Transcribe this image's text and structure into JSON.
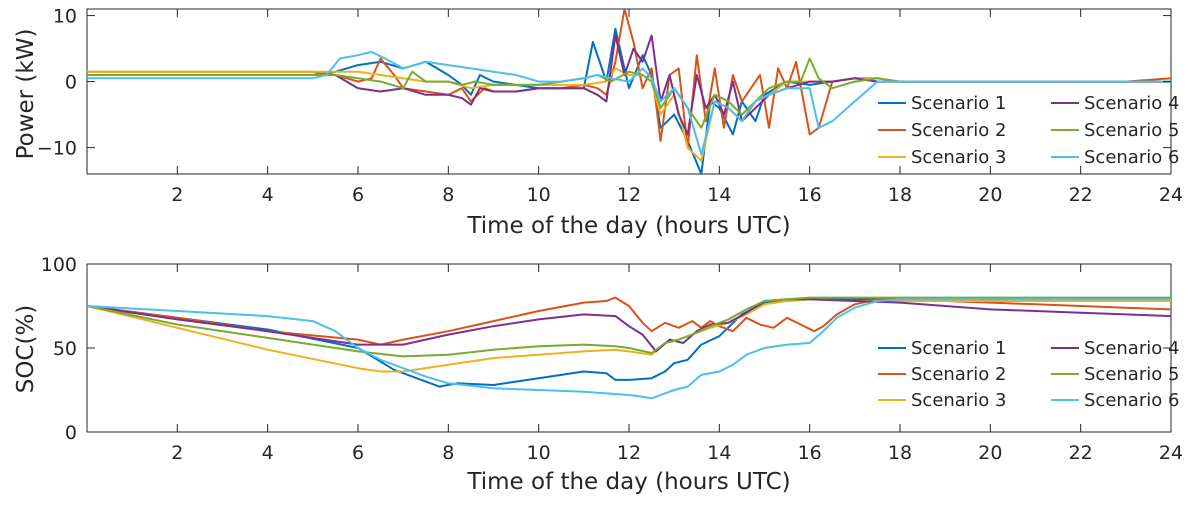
{
  "chart_data": [
    {
      "type": "line",
      "xlabel": "Time of the day (hours UTC)",
      "ylabel": "Power (kW)",
      "xlim": [
        0,
        24
      ],
      "ylim": [
        -14,
        11
      ],
      "xticks": [
        2,
        4,
        6,
        8,
        10,
        12,
        14,
        16,
        18,
        20,
        22,
        24
      ],
      "yticks": [
        -10,
        0,
        10
      ],
      "grid": false,
      "legend_position": "bottom-right",
      "legend_columns": 2,
      "series": [
        {
          "name": "Scenario 1",
          "color": "#0072BD",
          "x": [
            0,
            2,
            4,
            5,
            5.5,
            6,
            6.5,
            7,
            7.5,
            8,
            8.3,
            8.5,
            8.7,
            9,
            9.5,
            10,
            10.5,
            11,
            11.2,
            11.5,
            11.7,
            12,
            12.3,
            12.5,
            12.7,
            13,
            13.3,
            13.6,
            13.8,
            14,
            14.3,
            14.5,
            14.8,
            15,
            15.5,
            16,
            16.5,
            17,
            17.5,
            18,
            19,
            20,
            21,
            22,
            23,
            24
          ],
          "y": [
            1,
            1,
            1,
            1,
            1.5,
            2.5,
            3,
            2,
            3,
            1,
            -0.5,
            -2,
            1,
            0,
            -0.5,
            -1,
            -1,
            -1,
            6,
            0,
            8,
            -1,
            4,
            1,
            -7,
            -5,
            -9,
            -14,
            -3,
            -4,
            -8,
            -3,
            -6,
            -2,
            0,
            -0.5,
            0,
            0.5,
            0,
            0,
            0,
            0,
            0,
            0,
            0,
            0
          ]
        },
        {
          "name": "Scenario 2",
          "color": "#D95319",
          "x": [
            0,
            2,
            4,
            5,
            5.5,
            6,
            6.3,
            6.5,
            6.8,
            7,
            7.5,
            8,
            8.3,
            8.5,
            8.8,
            9,
            9.5,
            10,
            10.5,
            11,
            11.3,
            11.5,
            11.7,
            11.9,
            12.1,
            12.3,
            12.5,
            12.7,
            12.9,
            13.1,
            13.3,
            13.5,
            13.7,
            13.9,
            14.1,
            14.3,
            14.5,
            14.7,
            14.9,
            15.1,
            15.3,
            15.5,
            15.7,
            16,
            16.2,
            16.5,
            17,
            17.5,
            18,
            19,
            20,
            21,
            22,
            23,
            24
          ],
          "y": [
            1.5,
            1.5,
            1.5,
            1.5,
            1,
            0,
            0.5,
            3.5,
            1,
            -1,
            -1.5,
            -2,
            -1,
            -3,
            -1,
            -1.5,
            -1.5,
            -1,
            -1,
            -0.5,
            -1,
            -2,
            3,
            11,
            6,
            -1,
            2,
            -9,
            1,
            2,
            -10,
            4,
            -6,
            2,
            -7,
            1,
            -3,
            -1,
            1,
            -7,
            2,
            -1,
            3,
            -8,
            -7,
            0,
            0.5,
            0.5,
            0,
            0,
            0,
            0,
            0,
            0,
            0.5
          ]
        },
        {
          "name": "Scenario 3",
          "color": "#EDB120",
          "x": [
            0,
            2,
            4,
            5,
            5.5,
            6,
            6.5,
            7,
            7.5,
            8,
            8.5,
            9,
            9.5,
            10,
            10.5,
            11,
            11.5,
            11.7,
            12,
            12.3,
            12.5,
            12.7,
            13,
            13.3,
            13.6,
            13.9,
            14.2,
            14.5,
            14.8,
            15.1,
            15.5,
            16,
            16.5,
            17,
            17.5,
            18,
            19,
            20,
            21,
            22,
            23,
            24
          ],
          "y": [
            1.5,
            1.5,
            1.5,
            1.5,
            1.5,
            1.5,
            1,
            0.5,
            0,
            0,
            -1,
            -0.5,
            -0.5,
            -0.5,
            -0.5,
            -0.5,
            0,
            2,
            1,
            1,
            0,
            -5,
            -2,
            -10,
            -12,
            -3,
            -4,
            -6,
            -3,
            -2,
            0,
            0,
            0,
            0.5,
            0.5,
            0,
            0,
            0,
            0,
            0,
            0,
            0
          ]
        },
        {
          "name": "Scenario 4",
          "color": "#7E2F8E",
          "x": [
            0,
            2,
            4,
            5,
            5.5,
            6,
            6.5,
            7,
            7.5,
            8,
            8.3,
            8.5,
            8.7,
            9,
            9.5,
            10,
            10.5,
            11,
            11.3,
            11.5,
            11.7,
            11.9,
            12.1,
            12.3,
            12.5,
            12.7,
            12.9,
            13.1,
            13.3,
            13.5,
            13.7,
            13.9,
            14.1,
            14.3,
            14.5,
            14.8,
            15.1,
            15.5,
            16,
            16.5,
            17,
            17.5,
            18,
            19,
            20,
            21,
            22,
            23,
            24
          ],
          "y": [
            1,
            1,
            1,
            1,
            1,
            -1,
            -1.5,
            -1,
            -2,
            -2,
            -2.5,
            -3.5,
            -1,
            -1.5,
            -1.5,
            -1,
            -1,
            -1,
            -2,
            -3,
            7,
            1,
            5,
            3,
            7,
            -3,
            1,
            -5,
            -8,
            1,
            -4,
            -2,
            -5,
            0,
            -6,
            -4,
            -2,
            -1,
            0,
            0,
            0.5,
            0,
            0,
            0,
            0,
            0,
            0,
            0,
            0
          ]
        },
        {
          "name": "Scenario 5",
          "color": "#77AC30",
          "x": [
            0,
            2,
            4,
            5,
            5.5,
            6,
            6.5,
            7,
            7.2,
            7.5,
            8,
            8.3,
            8.6,
            9,
            9.5,
            10,
            10.5,
            11,
            11.3,
            11.6,
            12,
            12.3,
            12.5,
            12.7,
            13,
            13.3,
            13.6,
            13.9,
            14.2,
            14.5,
            14.8,
            15.1,
            15.5,
            15.8,
            16,
            16.2,
            16.5,
            17,
            17.5,
            18,
            19,
            20,
            21,
            22,
            23,
            24
          ],
          "y": [
            1,
            1,
            1,
            1,
            1,
            0.5,
            0,
            -1,
            1.5,
            0,
            0,
            -0.5,
            0,
            -0.5,
            -0.5,
            -0.5,
            0,
            0.5,
            1,
            0,
            1.5,
            1,
            0,
            -4,
            -1,
            -4,
            -7,
            -2,
            -3,
            -5,
            -3,
            -1,
            0,
            0,
            3.5,
            0.5,
            -1,
            0,
            0.5,
            0,
            0,
            0,
            0,
            0,
            0,
            0
          ]
        },
        {
          "name": "Scenario 6",
          "color": "#4DBEEE",
          "x": [
            0,
            2,
            4,
            5,
            5.3,
            5.6,
            6,
            6.3,
            6.6,
            7,
            7.5,
            8,
            8.5,
            9,
            9.5,
            10,
            10.5,
            11,
            11.3,
            11.6,
            12,
            12.3,
            12.5,
            12.7,
            13,
            13.3,
            13.6,
            13.9,
            14.2,
            14.5,
            14.8,
            15.1,
            15.5,
            16,
            16.2,
            16.5,
            17,
            17.5,
            18,
            19,
            20,
            21,
            22,
            23,
            24
          ],
          "y": [
            0.5,
            0.5,
            0.5,
            0.5,
            1,
            3.5,
            4,
            4.5,
            3.5,
            2,
            3,
            2.5,
            2,
            1.5,
            1,
            0,
            0,
            0.5,
            1,
            0.5,
            0,
            2,
            0.5,
            -3,
            -1,
            -4,
            -11,
            -3,
            -4,
            -6,
            -3,
            -2,
            -1,
            -1,
            -7,
            -6,
            -3,
            0,
            0,
            0,
            0,
            0,
            0,
            0,
            0
          ]
        }
      ]
    },
    {
      "type": "line",
      "xlabel": "Time of the day (hours UTC)",
      "ylabel": "SOC(%)",
      "xlim": [
        0,
        24
      ],
      "ylim": [
        0,
        100
      ],
      "xticks": [
        2,
        4,
        6,
        8,
        10,
        12,
        14,
        16,
        18,
        20,
        22,
        24
      ],
      "yticks": [
        0,
        50,
        100
      ],
      "grid": false,
      "legend_position": "bottom-right",
      "legend_columns": 2,
      "series": [
        {
          "name": "Scenario 1",
          "color": "#0072BD",
          "x": [
            0,
            2,
            4,
            6,
            6.8,
            7.5,
            7.8,
            8.2,
            9,
            10,
            10.5,
            11,
            11.5,
            11.7,
            12,
            12.5,
            12.8,
            13,
            13.3,
            13.6,
            14,
            14.5,
            15,
            15.5,
            16,
            16.5,
            17,
            18,
            19,
            20,
            21,
            22,
            23,
            24
          ],
          "y": [
            75,
            68,
            61,
            50,
            37,
            30,
            27,
            29,
            28,
            32,
            34,
            36,
            35,
            31,
            31,
            32,
            36,
            41,
            43,
            52,
            57,
            70,
            77,
            78,
            79,
            79,
            79,
            79,
            79,
            79,
            79,
            79,
            79,
            79
          ]
        },
        {
          "name": "Scenario 2",
          "color": "#D95319",
          "x": [
            0,
            2,
            4,
            6,
            6.5,
            7,
            8,
            9,
            10,
            11,
            11.5,
            11.7,
            12,
            12.3,
            12.5,
            12.8,
            13.1,
            13.4,
            13.6,
            13.8,
            14,
            14.3,
            14.6,
            14.9,
            15.2,
            15.5,
            15.8,
            16.1,
            16.3,
            16.6,
            17,
            17.5,
            18,
            19,
            20,
            21,
            22,
            23,
            24
          ],
          "y": [
            75,
            68,
            60,
            55,
            52,
            55,
            60,
            66,
            72,
            77,
            78,
            80,
            75,
            65,
            60,
            65,
            62,
            66,
            62,
            66,
            63,
            60,
            68,
            64,
            62,
            68,
            64,
            60,
            63,
            70,
            76,
            79,
            79,
            78,
            77,
            76,
            75,
            74,
            73
          ]
        },
        {
          "name": "Scenario 3",
          "color": "#EDB120",
          "x": [
            0,
            2,
            4,
            6,
            6.5,
            7,
            8,
            9,
            10,
            11,
            11.7,
            12,
            12.5,
            12.8,
            13.1,
            13.4,
            13.8,
            14.2,
            14.6,
            15,
            15.5,
            16,
            17,
            18,
            19,
            20,
            21,
            22,
            23,
            24
          ],
          "y": [
            75,
            62,
            49,
            38,
            36,
            36,
            40,
            44,
            46,
            48,
            49,
            48,
            46,
            53,
            55,
            58,
            62,
            65,
            70,
            76,
            78,
            79,
            78,
            78,
            78,
            78,
            78,
            78,
            78,
            78
          ]
        },
        {
          "name": "Scenario 4",
          "color": "#7E2F8E",
          "x": [
            0,
            2,
            4,
            6,
            7,
            8,
            9,
            10,
            11,
            11.7,
            12,
            12.3,
            12.6,
            12.9,
            13.2,
            13.5,
            13.8,
            14.2,
            14.6,
            15,
            15.5,
            16,
            17,
            18,
            19,
            20,
            21,
            22,
            23,
            24
          ],
          "y": [
            75,
            67,
            60,
            52,
            52,
            58,
            63,
            67,
            70,
            69,
            63,
            58,
            48,
            55,
            53,
            60,
            64,
            65,
            71,
            78,
            79,
            79,
            78,
            77,
            75,
            73,
            72,
            71,
            70,
            69
          ]
        },
        {
          "name": "Scenario 5",
          "color": "#77AC30",
          "x": [
            0,
            2,
            4,
            6,
            7,
            8,
            9,
            10,
            11,
            11.7,
            12,
            12.5,
            12.8,
            13.1,
            13.4,
            13.8,
            14.2,
            14.6,
            15,
            15.5,
            16,
            17,
            18,
            19,
            20,
            21,
            22,
            23,
            24
          ],
          "y": [
            75,
            64,
            56,
            48,
            45,
            46,
            49,
            51,
            52,
            51,
            50,
            47,
            53,
            55,
            58,
            63,
            67,
            73,
            78,
            79,
            80,
            80,
            80,
            80,
            80,
            80,
            80,
            80,
            80
          ]
        },
        {
          "name": "Scenario 6",
          "color": "#4DBEEE",
          "x": [
            0,
            2,
            4,
            5,
            5.5,
            6,
            6.5,
            7,
            7.5,
            8,
            9,
            10,
            11,
            11.5,
            12,
            12.3,
            12.5,
            12.7,
            13,
            13.3,
            13.6,
            14,
            14.3,
            14.6,
            15,
            15.5,
            16,
            16.3,
            16.6,
            17,
            17.5,
            18,
            19,
            20,
            21,
            22,
            23,
            24
          ],
          "y": [
            75,
            72,
            69,
            66,
            60,
            50,
            43,
            38,
            33,
            29,
            26,
            25,
            24,
            23,
            22,
            21,
            20,
            22,
            25,
            27,
            34,
            36,
            40,
            46,
            50,
            52,
            53,
            60,
            68,
            74,
            78,
            79,
            79,
            79,
            79,
            79,
            79,
            79
          ]
        }
      ]
    }
  ]
}
